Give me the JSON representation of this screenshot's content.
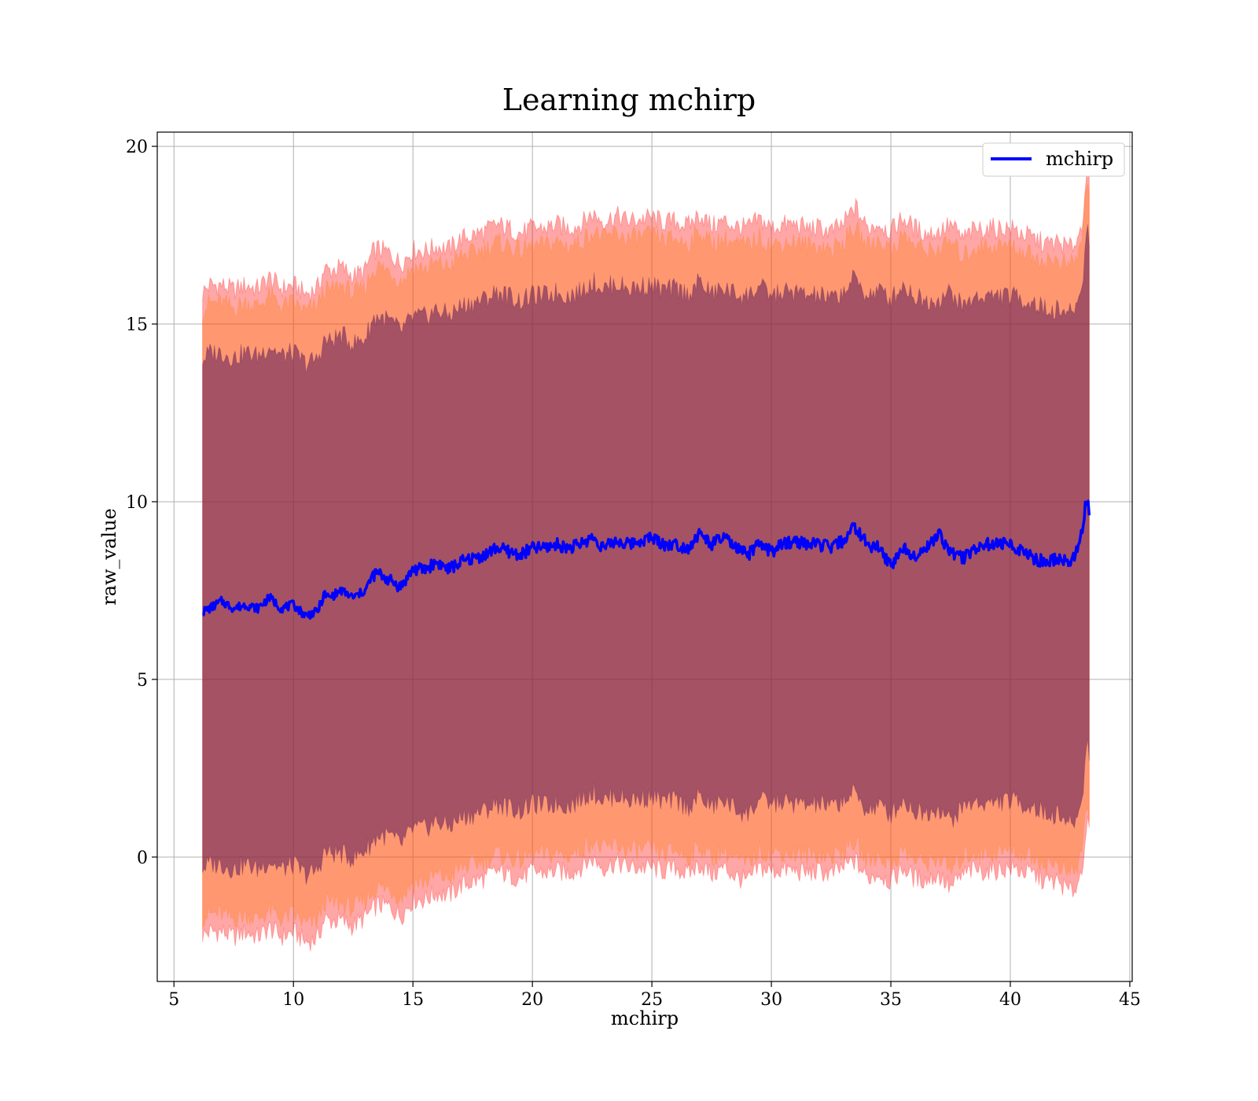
{
  "chart_data": {
    "type": "line",
    "title": "Learning mchirp",
    "xlabel": "mchirp",
    "ylabel": "raw_value",
    "xlim": [
      4.3,
      45.1
    ],
    "ylim": [
      -3.5,
      20.4
    ],
    "xticks": [
      5,
      10,
      15,
      20,
      25,
      30,
      35,
      40,
      45
    ],
    "yticks": [
      0,
      5,
      10,
      15,
      20
    ],
    "grid": true,
    "legend": {
      "position": "top-right",
      "entries": [
        "mchirp"
      ]
    },
    "x_range": [
      6.2,
      43.3
    ],
    "colors": {
      "line": "#0000ff",
      "band_outer": "#ff0000",
      "band_middle": "#ff7f0e",
      "band_inner": "#5a1a5a"
    },
    "series": [
      {
        "name": "mchirp",
        "style": "line",
        "x": [
          6.2,
          6.5,
          7.0,
          7.5,
          8.0,
          8.5,
          9.0,
          9.5,
          10.0,
          10.5,
          11.0,
          11.3,
          11.5,
          12.0,
          12.5,
          13.0,
          13.3,
          13.5,
          14.0,
          14.5,
          15.0,
          15.5,
          16.0,
          16.5,
          17.0,
          17.5,
          18.0,
          18.5,
          19.0,
          19.5,
          20.0,
          20.5,
          21.0,
          21.5,
          22.0,
          22.5,
          23.0,
          23.5,
          24.0,
          24.5,
          25.0,
          25.5,
          26.0,
          26.5,
          27.0,
          27.5,
          28.0,
          28.5,
          29.0,
          29.5,
          30.0,
          30.5,
          31.0,
          31.5,
          32.0,
          32.5,
          33.0,
          33.5,
          34.0,
          34.5,
          35.0,
          35.5,
          36.0,
          36.5,
          37.0,
          37.5,
          38.0,
          38.5,
          39.0,
          39.5,
          40.0,
          40.5,
          41.0,
          41.5,
          42.0,
          42.5,
          42.8,
          43.0,
          43.2,
          43.3
        ],
        "y": [
          6.9,
          7.0,
          7.2,
          7.0,
          7.1,
          7.0,
          7.3,
          7.0,
          7.1,
          6.8,
          6.9,
          7.4,
          7.3,
          7.5,
          7.3,
          7.5,
          7.9,
          8.0,
          7.8,
          7.6,
          8.1,
          8.1,
          8.3,
          8.1,
          8.3,
          8.4,
          8.5,
          8.7,
          8.6,
          8.5,
          8.7,
          8.7,
          8.8,
          8.7,
          8.8,
          9.0,
          8.7,
          8.9,
          8.8,
          8.9,
          9.0,
          8.8,
          8.8,
          8.7,
          9.1,
          8.8,
          9.0,
          8.7,
          8.5,
          8.8,
          8.6,
          8.8,
          8.9,
          8.8,
          8.8,
          8.7,
          8.9,
          9.3,
          8.8,
          8.7,
          8.2,
          8.7,
          8.5,
          8.7,
          9.1,
          8.6,
          8.4,
          8.7,
          8.8,
          8.8,
          8.8,
          8.6,
          8.4,
          8.3,
          8.4,
          8.3,
          8.6,
          9.2,
          10.2,
          9.6
        ]
      },
      {
        "name": "band_outer",
        "style": "fill_between",
        "x": [
          6.2,
          6.5,
          7.0,
          8.0,
          9.0,
          10.0,
          11.0,
          11.5,
          12.0,
          13.0,
          13.3,
          14.0,
          15.0,
          16.0,
          17.0,
          18.0,
          19.0,
          20.0,
          21.0,
          22.0,
          23.0,
          24.0,
          25.0,
          26.0,
          27.0,
          28.0,
          29.0,
          30.0,
          31.0,
          32.0,
          33.0,
          33.5,
          34.0,
          35.0,
          36.0,
          37.0,
          37.5,
          38.0,
          39.0,
          40.0,
          41.0,
          42.0,
          42.8,
          43.0,
          43.3
        ],
        "upper": [
          15.9,
          16.1,
          16.1,
          16.1,
          16.3,
          16.1,
          16.0,
          16.5,
          16.6,
          16.5,
          17.0,
          17.0,
          17.1,
          17.2,
          17.4,
          17.6,
          17.7,
          17.7,
          17.8,
          17.8,
          17.9,
          17.9,
          18.0,
          17.9,
          18.1,
          17.9,
          17.7,
          17.7,
          17.8,
          17.7,
          17.8,
          18.3,
          17.7,
          17.6,
          17.7,
          17.6,
          17.8,
          17.4,
          17.7,
          17.7,
          17.4,
          17.3,
          17.4,
          17.8,
          19.2
        ],
        "lower": [
          -2.2,
          -2.1,
          -2.1,
          -2.1,
          -2.0,
          -2.1,
          -2.3,
          -1.8,
          -1.8,
          -1.7,
          -1.5,
          -1.4,
          -1.2,
          -1.0,
          -0.8,
          -0.6,
          -0.5,
          -0.4,
          -0.4,
          -0.3,
          -0.3,
          -0.3,
          -0.3,
          -0.3,
          -0.2,
          -0.3,
          -0.7,
          -0.4,
          -0.4,
          -0.4,
          -0.3,
          -0.1,
          -0.6,
          -0.7,
          -0.6,
          -0.5,
          -0.9,
          -0.5,
          -0.4,
          -0.3,
          -0.5,
          -0.7,
          -0.8,
          -0.3,
          0.6
        ]
      },
      {
        "name": "band_middle",
        "style": "fill_between",
        "x": [
          6.2,
          6.5,
          7.0,
          8.0,
          9.0,
          10.0,
          11.0,
          11.5,
          12.0,
          13.0,
          13.3,
          14.0,
          15.0,
          16.0,
          17.0,
          18.0,
          19.0,
          20.0,
          21.0,
          22.0,
          23.0,
          24.0,
          25.0,
          26.0,
          27.0,
          28.0,
          29.0,
          30.0,
          31.0,
          32.0,
          33.0,
          33.5,
          34.0,
          35.0,
          36.0,
          37.0,
          37.5,
          38.0,
          39.0,
          40.0,
          41.0,
          42.0,
          42.8,
          43.0,
          43.3
        ],
        "upper": [
          15.4,
          15.6,
          15.6,
          15.6,
          15.8,
          15.6,
          15.5,
          15.9,
          16.1,
          16.0,
          16.5,
          16.5,
          16.6,
          16.7,
          16.9,
          17.1,
          17.2,
          17.2,
          17.3,
          17.3,
          17.4,
          17.4,
          17.5,
          17.4,
          17.6,
          17.4,
          17.2,
          17.2,
          17.3,
          17.2,
          17.3,
          17.7,
          17.2,
          17.1,
          17.2,
          17.1,
          17.3,
          16.9,
          17.2,
          17.2,
          16.9,
          16.8,
          16.9,
          17.3,
          18.9
        ],
        "lower": [
          -1.7,
          -1.6,
          -1.6,
          -1.6,
          -1.5,
          -1.6,
          -1.8,
          -1.3,
          -1.3,
          -1.2,
          -1.0,
          -0.9,
          -0.7,
          -0.5,
          -0.3,
          -0.1,
          0.0,
          0.1,
          0.1,
          0.2,
          0.2,
          0.2,
          0.2,
          0.2,
          0.3,
          0.2,
          -0.2,
          0.1,
          0.1,
          0.1,
          0.2,
          0.4,
          -0.1,
          -0.2,
          -0.1,
          0.0,
          -0.4,
          0.0,
          0.1,
          0.2,
          0.0,
          -0.2,
          -0.3,
          0.2,
          1.2
        ]
      },
      {
        "name": "band_inner",
        "style": "fill_between",
        "x": [
          6.2,
          6.5,
          7.0,
          8.0,
          9.0,
          10.0,
          11.0,
          11.5,
          12.0,
          13.0,
          13.3,
          14.0,
          15.0,
          16.0,
          17.0,
          18.0,
          19.0,
          20.0,
          21.0,
          22.0,
          23.0,
          24.0,
          25.0,
          26.0,
          27.0,
          28.0,
          29.0,
          30.0,
          31.0,
          32.0,
          33.0,
          33.5,
          34.0,
          35.0,
          36.0,
          37.0,
          37.5,
          38.0,
          39.0,
          40.0,
          41.0,
          42.0,
          42.8,
          43.0,
          43.3
        ],
        "upper": [
          14.0,
          14.2,
          14.2,
          14.2,
          14.4,
          14.2,
          14.0,
          14.5,
          14.7,
          14.6,
          15.1,
          15.1,
          15.2,
          15.4,
          15.5,
          15.7,
          15.8,
          15.8,
          15.9,
          15.9,
          16.0,
          16.0,
          16.1,
          16.0,
          16.2,
          16.0,
          15.8,
          15.8,
          15.9,
          15.8,
          15.9,
          16.3,
          15.8,
          15.7,
          15.8,
          15.7,
          15.9,
          15.5,
          15.8,
          15.8,
          15.6,
          15.4,
          15.6,
          16.0,
          17.5
        ],
        "lower": [
          -0.3,
          -0.2,
          -0.2,
          -0.2,
          -0.1,
          -0.2,
          -0.4,
          0.1,
          0.1,
          0.2,
          0.4,
          0.6,
          0.8,
          1.0,
          1.1,
          1.3,
          1.4,
          1.5,
          1.5,
          1.6,
          1.6,
          1.6,
          1.7,
          1.6,
          1.7,
          1.6,
          1.2,
          1.5,
          1.5,
          1.5,
          1.6,
          1.8,
          1.3,
          1.2,
          1.3,
          1.4,
          1.0,
          1.4,
          1.5,
          1.6,
          1.4,
          1.2,
          1.1,
          1.6,
          3.0
        ]
      }
    ]
  }
}
